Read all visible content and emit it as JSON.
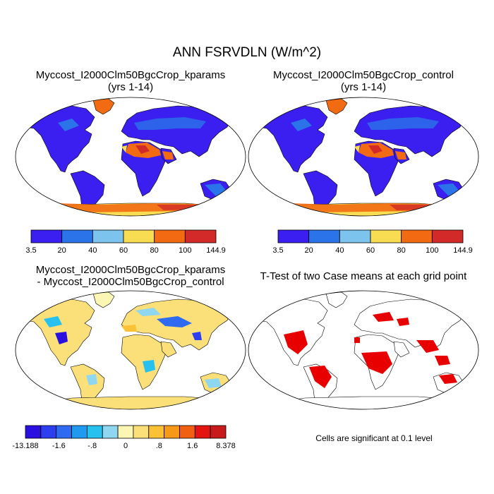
{
  "title": "ANN FSRVDLN (W/m^2)",
  "panels": [
    {
      "line1": "Myccost_I2000Clm50BgcCrop_kparams",
      "line2": "(yrs 1-14)"
    },
    {
      "line1": "Myccost_I2000Clm50BgcCrop_control",
      "line2": "(yrs 1-14)"
    },
    {
      "line1": "Myccost_I2000Clm50BgcCrop_kparams",
      "line2": "- Myccost_I2000Clm50BgcCrop_control"
    },
    {
      "line1": "T-Test of two Case means at each grid point",
      "line2": ""
    }
  ],
  "colorbar_abs": {
    "colors": [
      "#3a1ff0",
      "#2a73e8",
      "#7cc4ee",
      "#f8dc52",
      "#f26b12",
      "#d22a28"
    ],
    "labels": [
      "3.5",
      "20",
      "40",
      "60",
      "80",
      "100",
      "144.9"
    ]
  },
  "colorbar_diff": {
    "colors": [
      "#2a10e0",
      "#2d3ef0",
      "#2f6bf2",
      "#1f9af0",
      "#27c1f0",
      "#8fd6f0",
      "#fbf6b4",
      "#fbe07a",
      "#fbc235",
      "#f79818",
      "#f06010",
      "#e41410",
      "#c81a1a"
    ],
    "labels": [
      "-13.188",
      "-1.6",
      "-.8",
      "0",
      ".8",
      "1.6",
      "8.378"
    ]
  },
  "ttest_note": "Cells are significant at 0.1 level"
}
